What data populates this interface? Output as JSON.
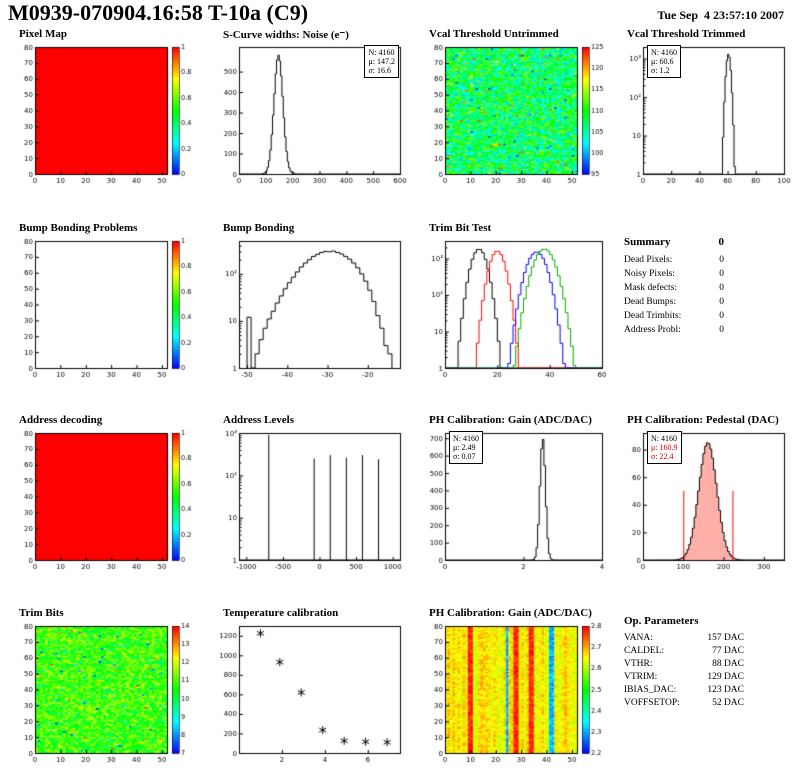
{
  "header": {
    "title": "M0939-070904.16:58 T-10a (C9)",
    "datetime": "Tue Sep  4 23:57:10 2007"
  },
  "summary": {
    "heading": "Summary",
    "grade": "0",
    "rows": [
      {
        "label": "Dead Pixels:",
        "value": "0"
      },
      {
        "label": "Noisy Pixels:",
        "value": "0"
      },
      {
        "label": "Mask defects:",
        "value": "0"
      },
      {
        "label": "Dead Bumps:",
        "value": "0"
      },
      {
        "label": "Dead Trimbits:",
        "value": "0"
      },
      {
        "label": "Address Probl:",
        "value": "0"
      }
    ]
  },
  "op_parameters": {
    "heading": "Op. Parameters",
    "rows": [
      {
        "label": "VANA:",
        "value": "157 DAC"
      },
      {
        "label": "CALDEL:",
        "value": "77 DAC"
      },
      {
        "label": "VTHR:",
        "value": "88 DAC"
      },
      {
        "label": "VTRIM:",
        "value": "129 DAC"
      },
      {
        "label": "IBIAS_DAC:",
        "value": "123 DAC"
      },
      {
        "label": "VOFFSETOP:",
        "value": "52 DAC"
      }
    ]
  },
  "chart_data": [
    {
      "id": "pixel-map",
      "type": "heatmap",
      "title": "Pixel Map",
      "x": {
        "min": 0,
        "max": 52,
        "ticks": [
          0,
          10,
          20,
          30,
          40,
          50
        ]
      },
      "y": {
        "min": 0,
        "max": 80,
        "ticks": [
          0,
          10,
          20,
          30,
          40,
          50,
          60,
          70,
          80
        ]
      },
      "fill": {
        "mode": "uniform",
        "value": 1
      },
      "colorbar": {
        "min": 0,
        "max": 1,
        "labels": [
          "0",
          "0.2",
          "0.4",
          "0.6",
          "0.8",
          "1"
        ]
      }
    },
    {
      "id": "scurve-noise",
      "type": "histogram",
      "title": "S-Curve widths: Noise (e⁻)",
      "x": {
        "min": 0,
        "max": 600,
        "ticks": [
          0,
          100,
          200,
          300,
          400,
          500,
          600
        ]
      },
      "y": {
        "min": 0,
        "max": 620,
        "ticks": [
          0,
          100,
          200,
          300,
          400,
          500
        ]
      },
      "series": [
        {
          "name": "noise",
          "color": "#000000",
          "dist": "gauss",
          "mu": 147.2,
          "sigma": 16.6,
          "peak": 580,
          "nb": 120
        }
      ],
      "stats": {
        "n": "N: 4160",
        "mu": "μ: 147.2",
        "sigma": "σ: 16.6"
      }
    },
    {
      "id": "vcal-untrimmed",
      "type": "heatmap",
      "title": "Vcal Threshold Untrimmed",
      "x": {
        "min": 0,
        "max": 52,
        "ticks": [
          0,
          10,
          20,
          30,
          40,
          50
        ]
      },
      "y": {
        "min": 0,
        "max": 80,
        "ticks": [
          0,
          10,
          20,
          30,
          40,
          50,
          60,
          70,
          80
        ]
      },
      "fill": {
        "mode": "noise",
        "base": 0.42,
        "spread": 0.22,
        "outlier": 0.06,
        "seed": 7
      },
      "colorbar": {
        "min": 95,
        "max": 125,
        "labels": [
          "95",
          "100",
          "105",
          "110",
          "115",
          "120",
          "125"
        ]
      }
    },
    {
      "id": "vcal-trimmed",
      "type": "histogram",
      "title": "Vcal Threshold Trimmed",
      "ylog": true,
      "x": {
        "min": 0,
        "max": 100,
        "ticks": [
          0,
          20,
          40,
          60,
          80,
          100
        ]
      },
      "y": {
        "min": 1,
        "max": 2000
      },
      "series": [
        {
          "name": "threshold",
          "color": "#000000",
          "dist": "gauss",
          "mu": 60.6,
          "sigma": 1.2,
          "peak": 1300,
          "nb": 110
        }
      ],
      "stats": {
        "n": "N: 4160",
        "mu": "μ: 60.6",
        "sigma": "σ: 1.2"
      }
    },
    {
      "id": "bump-problems",
      "type": "heatmap",
      "title": "Bump Bonding Problems",
      "x": {
        "min": 0,
        "max": 52,
        "ticks": [
          0,
          10,
          20,
          30,
          40,
          50
        ]
      },
      "y": {
        "min": 0,
        "max": 80,
        "ticks": [
          0,
          10,
          20,
          30,
          40,
          50,
          60,
          70,
          80
        ]
      },
      "fill": {
        "mode": "empty"
      },
      "colorbar": {
        "min": 0,
        "max": 1,
        "labels": [
          "0",
          "0.2",
          "0.4",
          "0.6",
          "0.8",
          "1"
        ]
      }
    },
    {
      "id": "bump-bonding",
      "type": "histogram",
      "title": "Bump Bonding",
      "ylog": true,
      "x": {
        "min": -52,
        "max": -12,
        "ticks": [
          -50,
          -40,
          -30,
          -20
        ]
      },
      "y": {
        "min": 1,
        "max": 500
      },
      "series": [
        {
          "name": "bump",
          "color": "#000000",
          "start": -50,
          "width": 1,
          "bins": [
            12,
            0,
            2,
            4,
            7,
            11,
            16,
            24,
            34,
            48,
            65,
            85,
            110,
            140,
            170,
            200,
            235,
            260,
            285,
            300,
            295,
            305,
            285,
            265,
            235,
            205,
            170,
            135,
            100,
            70,
            45,
            26,
            13,
            7,
            3,
            2
          ]
        }
      ]
    },
    {
      "id": "trim-bit-test",
      "type": "multi_histogram",
      "title": "Trim Bit Test",
      "ylog": true,
      "x": {
        "min": 0,
        "max": 60,
        "ticks": [
          0,
          20,
          40,
          60
        ]
      },
      "y": {
        "min": 1,
        "max": 3000
      },
      "series": [
        {
          "name": "trim-bit-0",
          "color": "#000000",
          "dist": "gauss",
          "mu": 13,
          "sigma": 2.2,
          "peak": 1800,
          "nb": 60
        },
        {
          "name": "trim-bit-1",
          "color": "#ff0000",
          "dist": "gauss",
          "mu": 20,
          "sigma": 2.2,
          "peak": 1600,
          "nb": 60
        },
        {
          "name": "trim-bit-2",
          "color": "#0000ff",
          "dist": "gauss",
          "mu": 35,
          "sigma": 2.8,
          "peak": 1500,
          "nb": 60
        },
        {
          "name": "trim-bit-3",
          "color": "#00aa00",
          "dist": "gauss",
          "mu": 38,
          "sigma": 3.0,
          "peak": 1800,
          "nb": 60
        }
      ]
    },
    {
      "id": "address-decoding",
      "type": "heatmap",
      "title": "Address decoding",
      "x": {
        "min": 0,
        "max": 52,
        "ticks": [
          0,
          10,
          20,
          30,
          40,
          50
        ]
      },
      "y": {
        "min": 0,
        "max": 80,
        "ticks": [
          0,
          10,
          20,
          30,
          40,
          50,
          60,
          70,
          80
        ]
      },
      "fill": {
        "mode": "uniform",
        "value": 1
      },
      "colorbar": {
        "min": 0,
        "max": 1,
        "labels": [
          "0",
          "0.2",
          "0.4",
          "0.6",
          "0.8",
          "1"
        ]
      }
    },
    {
      "id": "address-levels",
      "type": "spike_histogram",
      "title": "Address Levels",
      "ylog": true,
      "x": {
        "min": -1100,
        "max": 1100,
        "ticks": [
          -1000,
          -500,
          0,
          500,
          1000
        ]
      },
      "y": {
        "min": 1,
        "max": 1000
      },
      "series": [
        {
          "name": "levels",
          "color": "#000000",
          "spikes": [
            [
              -700,
              900
            ],
            [
              -80,
              250
            ],
            [
              140,
              300
            ],
            [
              360,
              260
            ],
            [
              580,
              300
            ],
            [
              800,
              240
            ]
          ]
        }
      ]
    },
    {
      "id": "ph-gain-hist",
      "type": "histogram",
      "title": "PH Calibration: Gain (ADC/DAC)",
      "x": {
        "min": 0,
        "max": 4,
        "ticks": [
          0,
          2,
          4
        ]
      },
      "y": {
        "min": 0,
        "max": 730,
        "ticks": [
          0,
          100,
          200,
          300,
          400,
          500,
          600,
          700
        ]
      },
      "series": [
        {
          "name": "gain",
          "color": "#000000",
          "dist": "gauss",
          "mu": 2.49,
          "sigma": 0.07,
          "peak": 700,
          "nb": 100
        }
      ],
      "stats": {
        "n": "N: 4160",
        "mu": "μ: 2.49",
        "sigma": "σ: 0.07"
      }
    },
    {
      "id": "ph-pedestal",
      "type": "histogram",
      "title": "PH Calibration: Pedestal (DAC)",
      "x": {
        "min": 0,
        "max": 350,
        "ticks": [
          0,
          100,
          200,
          300
        ]
      },
      "y": {
        "min": 0,
        "max": 92,
        "ticks": [
          0,
          20,
          40,
          60,
          80
        ]
      },
      "series": [
        {
          "name": "pedestal",
          "color": "#000000",
          "fill": "rgba(255,60,40,0.4)",
          "dist": "gauss",
          "mu": 160.9,
          "sigma": 22.4,
          "peak": 85,
          "nb": 80
        }
      ],
      "vlines": [
        {
          "x": 100,
          "h": 50
        },
        {
          "x": 222,
          "h": 50
        }
      ],
      "vline_color": "#ff0000",
      "stats": {
        "n": "N: 4160",
        "mu": "μ: 160.9",
        "sigma": "σ: 22.4"
      }
    },
    {
      "id": "trim-bits-map",
      "type": "heatmap",
      "title": "Trim Bits",
      "x": {
        "min": 0,
        "max": 52,
        "ticks": [
          0,
          10,
          20,
          30,
          40,
          50
        ]
      },
      "y": {
        "min": 0,
        "max": 80,
        "ticks": [
          0,
          10,
          20,
          30,
          40,
          50,
          60,
          70,
          80
        ]
      },
      "fill": {
        "mode": "noise",
        "base": 0.55,
        "spread": 0.15,
        "outlier": 0.05,
        "seed": 21
      },
      "colorbar": {
        "min": 7,
        "max": 14,
        "labels": [
          "7",
          "8",
          "9",
          "10",
          "11",
          "12",
          "13",
          "14"
        ]
      }
    },
    {
      "id": "temperature",
      "type": "scatter",
      "title": "Temperature calibration",
      "x": {
        "min": 0,
        "max": 7.5,
        "ticks": [
          2,
          4,
          6
        ]
      },
      "y": {
        "min": 0,
        "max": 1300,
        "ticks": [
          0,
          200,
          400,
          600,
          800,
          1000,
          1200
        ]
      },
      "series": [
        {
          "name": "temp-points",
          "color": "#000000",
          "points": [
            [
              1,
              1225
            ],
            [
              1.9,
              930
            ],
            [
              2.9,
              620
            ],
            [
              3.9,
              235
            ],
            [
              4.9,
              125
            ],
            [
              5.9,
              115
            ],
            [
              6.9,
              110
            ]
          ]
        }
      ]
    },
    {
      "id": "ph-gain-map",
      "type": "heatmap",
      "title": "PH Calibration: Gain (ADC/DAC)",
      "x": {
        "min": 0,
        "max": 52,
        "ticks": [
          0,
          10,
          20,
          30,
          40,
          50
        ]
      },
      "y": {
        "min": 0,
        "max": 80,
        "ticks": [
          0,
          10,
          20,
          30,
          40,
          50,
          60,
          70,
          80
        ]
      },
      "fill": {
        "mode": "stripes",
        "base": 0.76,
        "colspread": 0.05,
        "cellspread": 0.06,
        "hot": [
          9,
          10,
          27,
          28,
          33,
          34
        ],
        "cold": [
          24,
          41,
          42
        ],
        "seed": 11
      },
      "colorbar": {
        "min": 2.2,
        "max": 2.8,
        "labels": [
          "2.2",
          "2.3",
          "2.4",
          "2.5",
          "2.6",
          "2.7",
          "2.8"
        ]
      }
    }
  ]
}
